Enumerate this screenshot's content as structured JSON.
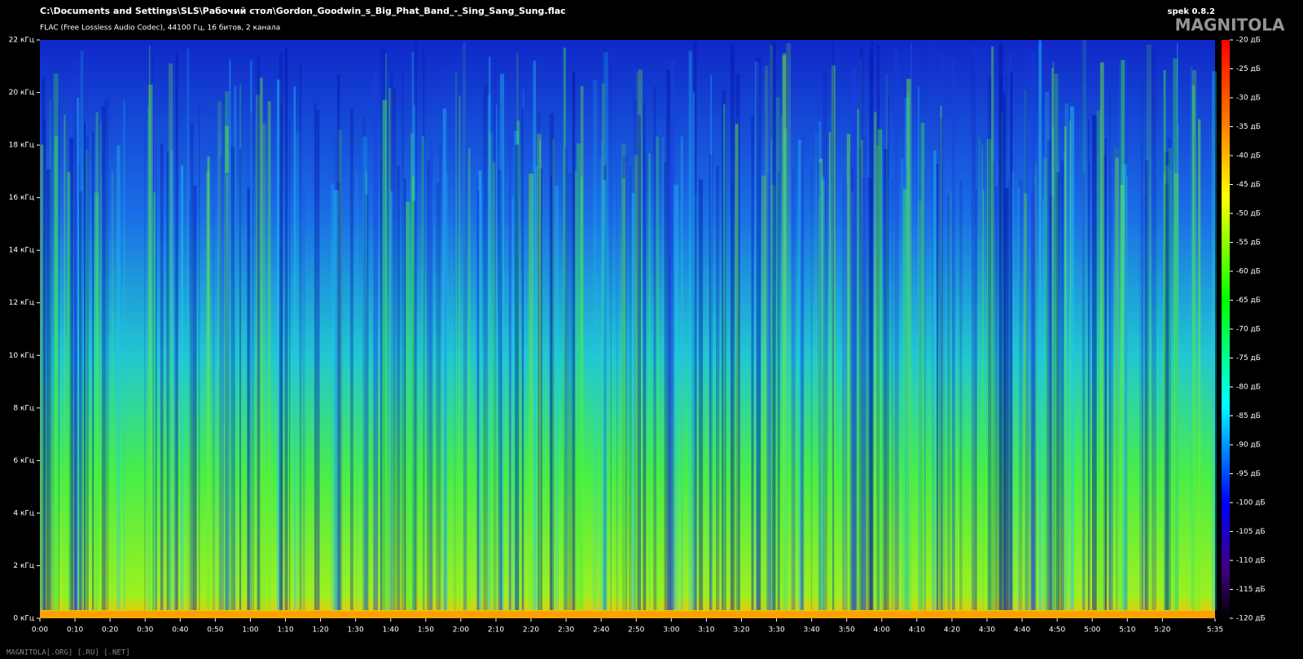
{
  "app": "spek 0.8.2",
  "watermark": "MAGNITOLA",
  "footer": "MAGNITOLA[.ORG] [.RU] [.NET]",
  "chart_data": {
    "type": "spectrogram",
    "title": "C:\\Documents and Settings\\SLS\\Рабочий стол\\Gordon_Goodwin_s_Big_Phat_Band_-_Sing_Sang_Sung.flac",
    "subtitle": "FLAC (Free Lossless Audio Codec), 44100 Гц, 16 битов, 2 канала",
    "xlim": [
      0,
      335
    ],
    "xticks": [
      {
        "value": 0,
        "label": "0:00"
      },
      {
        "value": 10,
        "label": "0:10"
      },
      {
        "value": 20,
        "label": "0:20"
      },
      {
        "value": 30,
        "label": "0:30"
      },
      {
        "value": 40,
        "label": "0:40"
      },
      {
        "value": 50,
        "label": "0:50"
      },
      {
        "value": 60,
        "label": "1:00"
      },
      {
        "value": 70,
        "label": "1:10"
      },
      {
        "value": 80,
        "label": "1:20"
      },
      {
        "value": 90,
        "label": "1:30"
      },
      {
        "value": 100,
        "label": "1:40"
      },
      {
        "value": 110,
        "label": "1:50"
      },
      {
        "value": 120,
        "label": "2:00"
      },
      {
        "value": 130,
        "label": "2:10"
      },
      {
        "value": 140,
        "label": "2:20"
      },
      {
        "value": 150,
        "label": "2:30"
      },
      {
        "value": 160,
        "label": "2:40"
      },
      {
        "value": 170,
        "label": "2:50"
      },
      {
        "value": 180,
        "label": "3:00"
      },
      {
        "value": 190,
        "label": "3:10"
      },
      {
        "value": 200,
        "label": "3:20"
      },
      {
        "value": 210,
        "label": "3:30"
      },
      {
        "value": 220,
        "label": "3:40"
      },
      {
        "value": 230,
        "label": "3:50"
      },
      {
        "value": 240,
        "label": "4:00"
      },
      {
        "value": 250,
        "label": "4:10"
      },
      {
        "value": 260,
        "label": "4:20"
      },
      {
        "value": 270,
        "label": "4:30"
      },
      {
        "value": 280,
        "label": "4:40"
      },
      {
        "value": 290,
        "label": "4:50"
      },
      {
        "value": 300,
        "label": "5:00"
      },
      {
        "value": 310,
        "label": "5:10"
      },
      {
        "value": 320,
        "label": "5:20"
      },
      {
        "value": 335,
        "label": "5:35"
      }
    ],
    "ylim": [
      0,
      22
    ],
    "yticks": [
      {
        "value": 0,
        "label": "0 кГц"
      },
      {
        "value": 2,
        "label": "2 кГц"
      },
      {
        "value": 4,
        "label": "4 кГц"
      },
      {
        "value": 6,
        "label": "6 кГц"
      },
      {
        "value": 8,
        "label": "8 кГц"
      },
      {
        "value": 10,
        "label": "10 кГц"
      },
      {
        "value": 12,
        "label": "12 кГц"
      },
      {
        "value": 14,
        "label": "14 кГц"
      },
      {
        "value": 16,
        "label": "16 кГц"
      },
      {
        "value": 18,
        "label": "18 кГц"
      },
      {
        "value": 20,
        "label": "20 кГц"
      },
      {
        "value": 22,
        "label": "22 кГц"
      }
    ],
    "clim": [
      -120,
      -20
    ],
    "cticks": [
      {
        "value": -20,
        "label": "-20 дБ"
      },
      {
        "value": -25,
        "label": "-25 дБ"
      },
      {
        "value": -30,
        "label": "-30 дБ"
      },
      {
        "value": -35,
        "label": "-35 дБ"
      },
      {
        "value": -40,
        "label": "-40 дБ"
      },
      {
        "value": -45,
        "label": "-45 дБ"
      },
      {
        "value": -50,
        "label": "-50 дБ"
      },
      {
        "value": -55,
        "label": "-55 дБ"
      },
      {
        "value": -60,
        "label": "-60 дБ"
      },
      {
        "value": -65,
        "label": "-65 дБ"
      },
      {
        "value": -70,
        "label": "-70 дБ"
      },
      {
        "value": -75,
        "label": "-75 дБ"
      },
      {
        "value": -80,
        "label": "-80 дБ"
      },
      {
        "value": -85,
        "label": "-85 дБ"
      },
      {
        "value": -90,
        "label": "-90 дБ"
      },
      {
        "value": -95,
        "label": "-95 дБ"
      },
      {
        "value": -100,
        "label": "-100 дБ"
      },
      {
        "value": -105,
        "label": "-105 дБ"
      },
      {
        "value": -110,
        "label": "-110 дБ"
      },
      {
        "value": -115,
        "label": "-115 дБ"
      },
      {
        "value": -120,
        "label": "-120 дБ"
      }
    ]
  }
}
